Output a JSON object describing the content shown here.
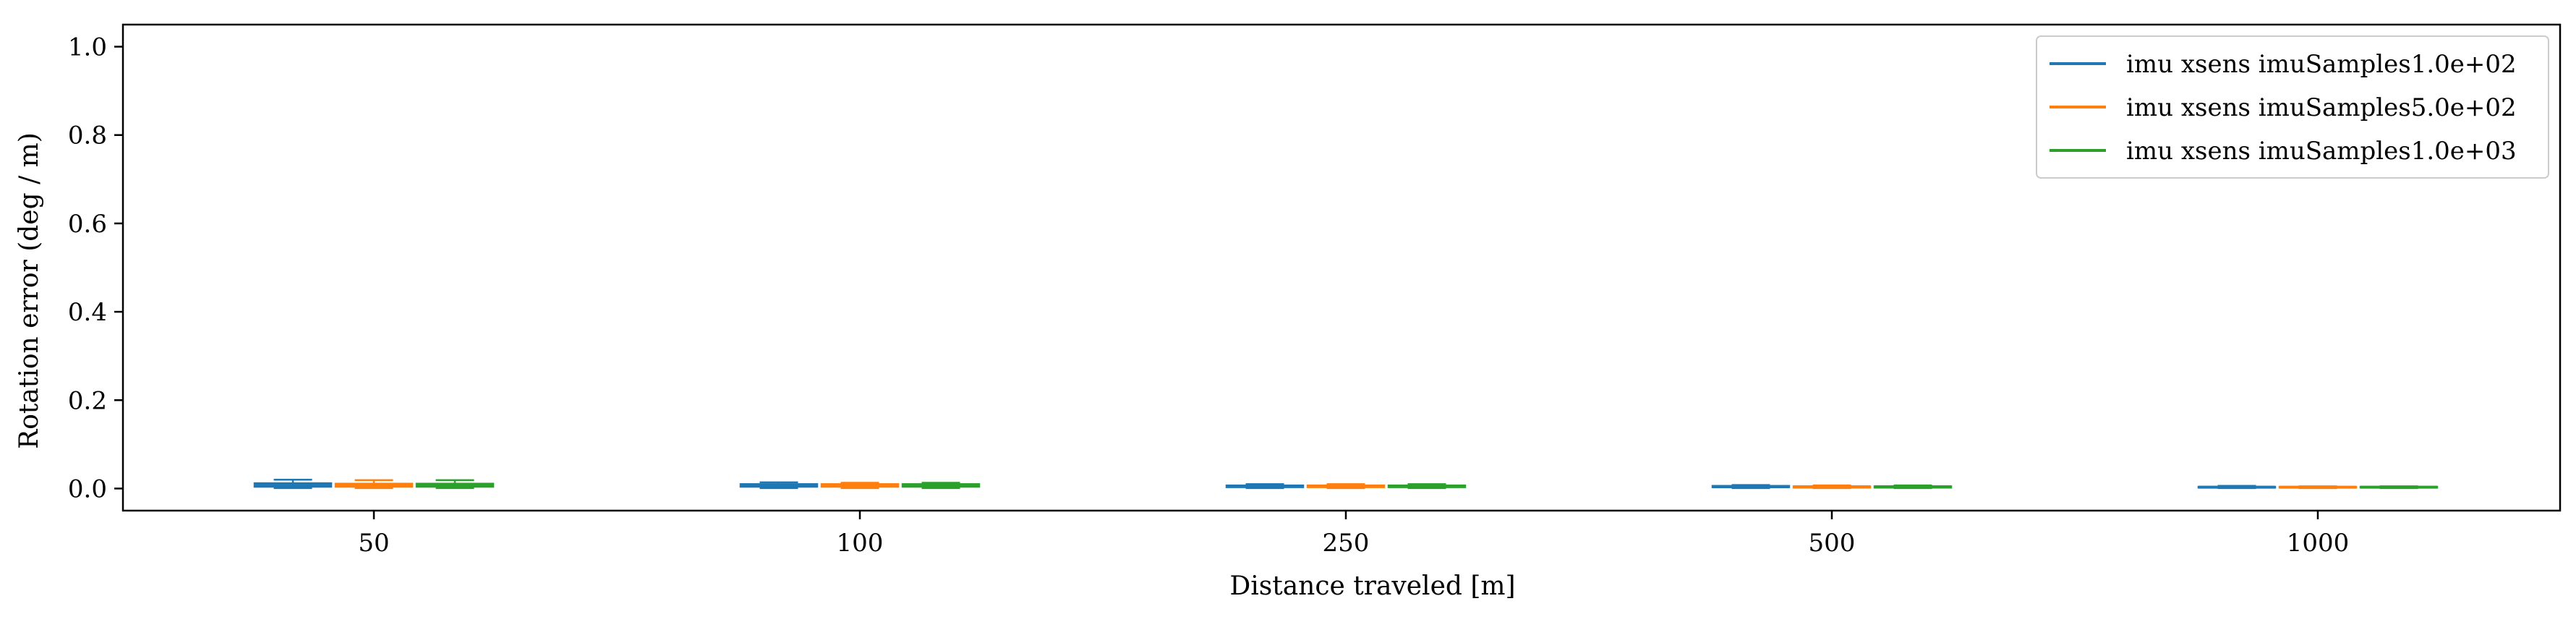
{
  "chart_data": {
    "type": "box",
    "categories": [
      "50",
      "100",
      "250",
      "500",
      "1000"
    ],
    "xlabel": "Distance traveled [m]",
    "ylabel": "Rotation error (deg / m)",
    "ylim": [
      -0.05,
      1.05
    ],
    "yticks": [
      {
        "value": 0.0,
        "label": "0.0"
      },
      {
        "value": 0.2,
        "label": "0.2"
      },
      {
        "value": 0.4,
        "label": "0.4"
      },
      {
        "value": 0.6,
        "label": "0.6"
      },
      {
        "value": 0.8,
        "label": "0.8"
      },
      {
        "value": 1.0,
        "label": "1.0"
      }
    ],
    "grid": false,
    "legend_position": "top-right",
    "series": [
      {
        "name": "imu xsens imuSamples1.0e+02",
        "color": "#1f77b4",
        "boxes": [
          {
            "q1": 0.004,
            "median": 0.008,
            "q3": 0.012,
            "whisker_low": 0.001,
            "whisker_high": 0.02
          },
          {
            "q1": 0.004,
            "median": 0.006,
            "q3": 0.01,
            "whisker_low": 0.001,
            "whisker_high": 0.014
          },
          {
            "q1": 0.003,
            "median": 0.005,
            "q3": 0.007,
            "whisker_low": 0.001,
            "whisker_high": 0.01
          },
          {
            "q1": 0.003,
            "median": 0.004,
            "q3": 0.006,
            "whisker_low": 0.001,
            "whisker_high": 0.008
          },
          {
            "q1": 0.002,
            "median": 0.003,
            "q3": 0.004,
            "whisker_low": 0.001,
            "whisker_high": 0.006
          }
        ]
      },
      {
        "name": "imu xsens imuSamples5.0e+02",
        "color": "#ff7f0e",
        "boxes": [
          {
            "q1": 0.004,
            "median": 0.007,
            "q3": 0.011,
            "whisker_low": 0.001,
            "whisker_high": 0.019
          },
          {
            "q1": 0.004,
            "median": 0.006,
            "q3": 0.01,
            "whisker_low": 0.001,
            "whisker_high": 0.013
          },
          {
            "q1": 0.003,
            "median": 0.005,
            "q3": 0.007,
            "whisker_low": 0.001,
            "whisker_high": 0.01
          },
          {
            "q1": 0.002,
            "median": 0.004,
            "q3": 0.005,
            "whisker_low": 0.001,
            "whisker_high": 0.007
          },
          {
            "q1": 0.002,
            "median": 0.003,
            "q3": 0.004,
            "whisker_low": 0.001,
            "whisker_high": 0.005
          }
        ]
      },
      {
        "name": "imu xsens imuSamples1.0e+03",
        "color": "#2ca02c",
        "boxes": [
          {
            "q1": 0.004,
            "median": 0.007,
            "q3": 0.011,
            "whisker_low": 0.001,
            "whisker_high": 0.019
          },
          {
            "q1": 0.004,
            "median": 0.006,
            "q3": 0.01,
            "whisker_low": 0.001,
            "whisker_high": 0.013
          },
          {
            "q1": 0.003,
            "median": 0.005,
            "q3": 0.007,
            "whisker_low": 0.001,
            "whisker_high": 0.01
          },
          {
            "q1": 0.002,
            "median": 0.004,
            "q3": 0.005,
            "whisker_low": 0.001,
            "whisker_high": 0.007
          },
          {
            "q1": 0.002,
            "median": 0.003,
            "q3": 0.004,
            "whisker_low": 0.001,
            "whisker_high": 0.005
          }
        ]
      }
    ]
  }
}
